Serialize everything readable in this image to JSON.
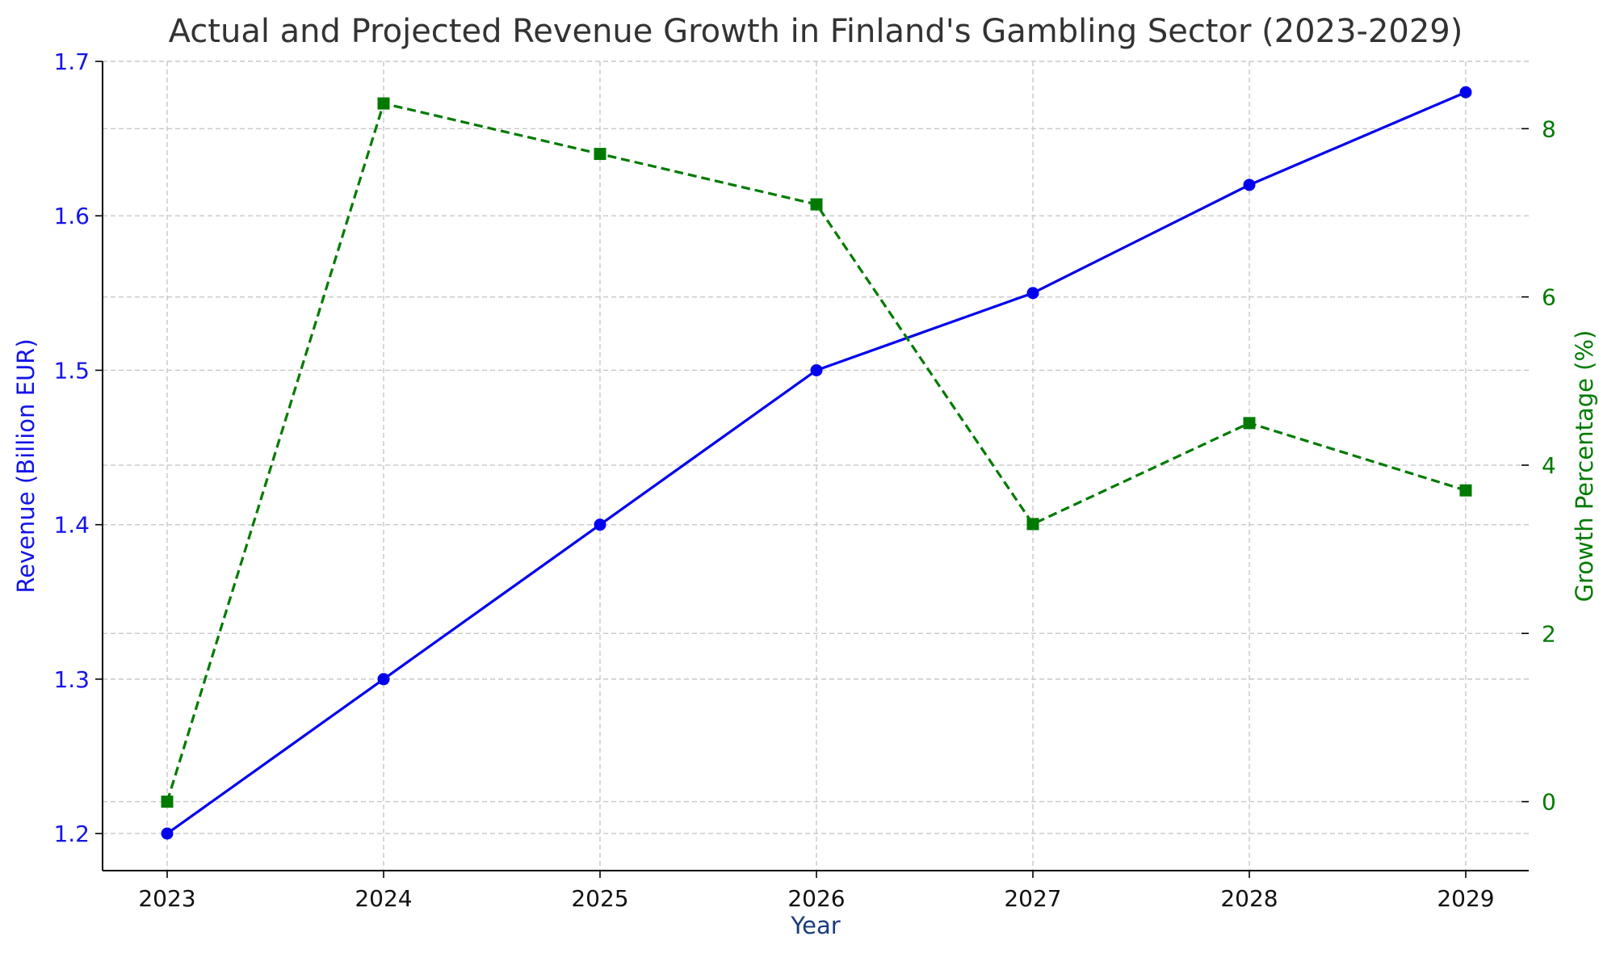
{
  "chart_data": {
    "type": "line",
    "title": "Actual and Projected Revenue Growth in Finland's Gambling Sector (2023-2029)",
    "xlabel": "Year",
    "x": [
      2023,
      2024,
      2025,
      2026,
      2027,
      2028,
      2029
    ],
    "y_left": {
      "label": "Revenue (Billion EUR)",
      "range": [
        1.176,
        1.7
      ],
      "ticks": [
        1.2,
        1.3,
        1.4,
        1.5,
        1.6,
        1.7
      ],
      "color": "#1414e8"
    },
    "y_right": {
      "label": "Growth Percentage (%)",
      "range": [
        -0.82,
        8.8
      ],
      "ticks": [
        0,
        2,
        4,
        6,
        8
      ],
      "color": "#007a00"
    },
    "series": [
      {
        "axis": "left",
        "values": [
          1.2,
          1.3,
          1.4,
          1.5,
          1.55,
          1.62,
          1.68
        ],
        "color": "#0000ee",
        "style": "solid",
        "marker": "circle"
      },
      {
        "axis": "right",
        "values": [
          0,
          8.3,
          7.7,
          7.1,
          3.3,
          4.5,
          3.7
        ],
        "color": "#007a00",
        "style": "dashed",
        "marker": "square"
      }
    ],
    "grid": true,
    "legend": "none"
  }
}
